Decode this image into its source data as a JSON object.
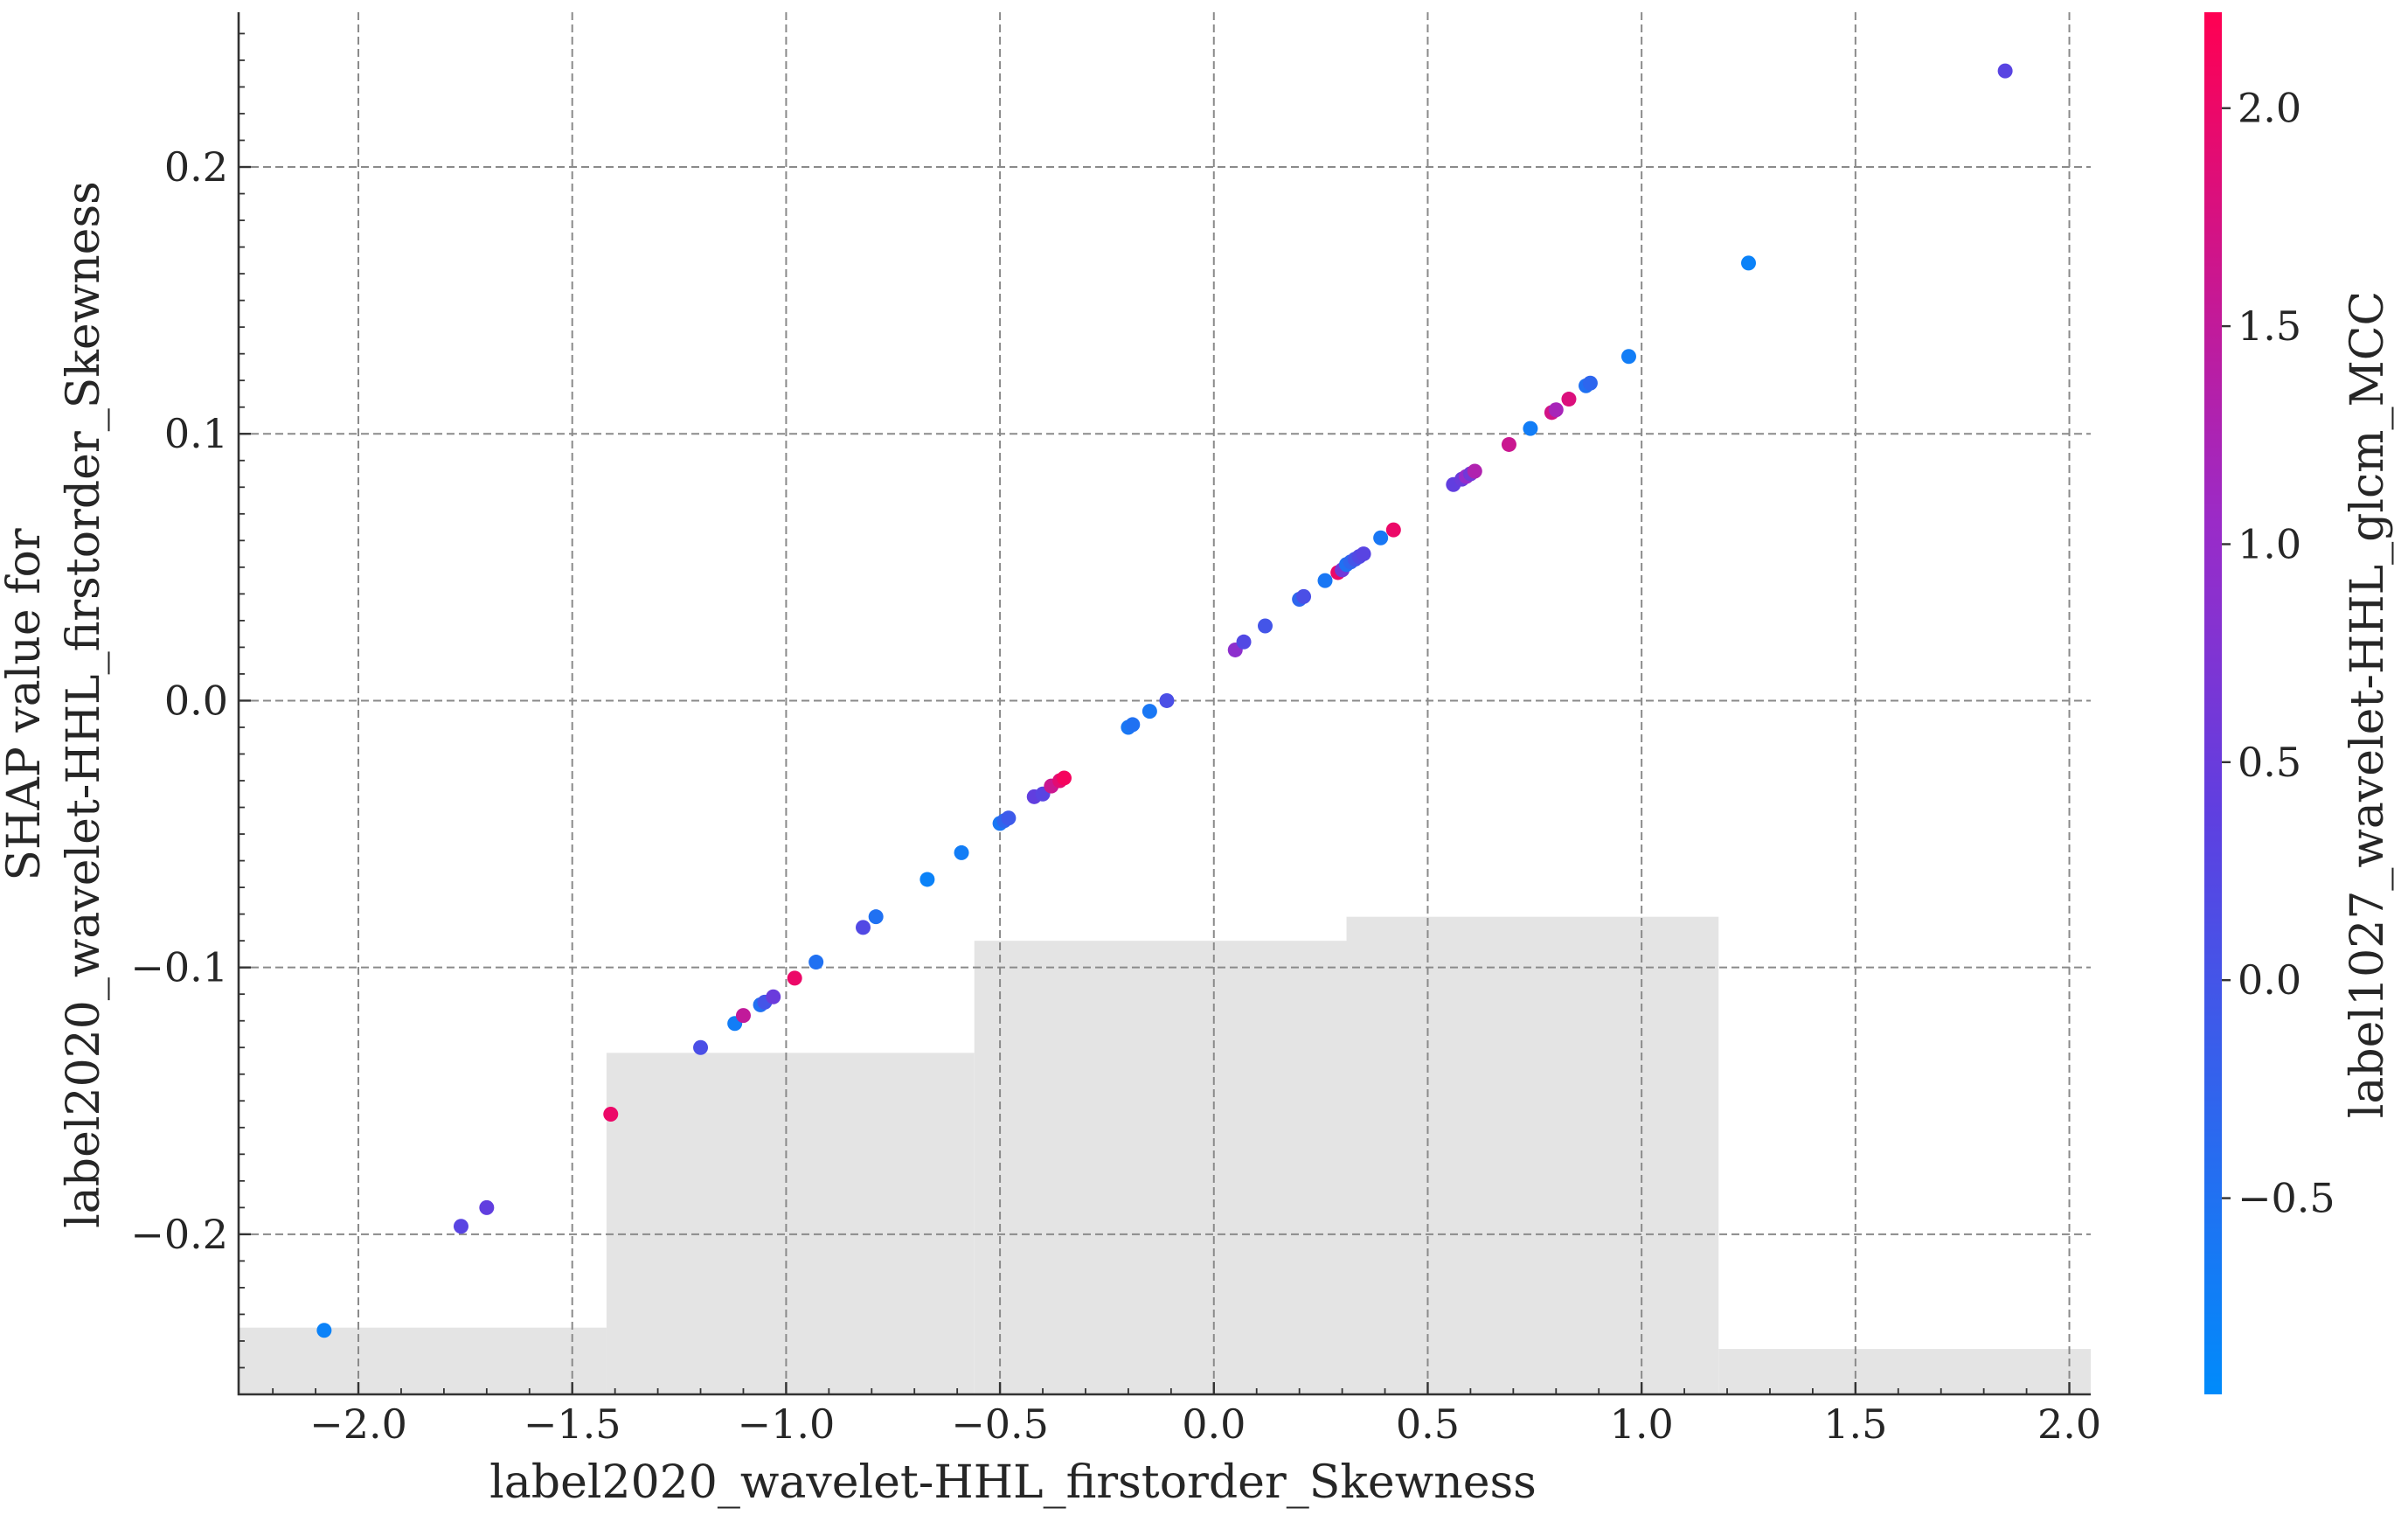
{
  "chart_data": {
    "type": "scatter",
    "title": "",
    "xlabel": "label2020_wavelet-HHL_firstorder_Skewness",
    "ylabel_lines": [
      "SHAP value for",
      "label2020_wavelet-HHL_firstorder_Skewness"
    ],
    "xlim": [
      -2.28,
      2.05
    ],
    "ylim": [
      -0.26,
      0.258
    ],
    "x_ticks": [
      -2.0,
      -1.5,
      -1.0,
      -0.5,
      0.0,
      0.5,
      1.0,
      1.5,
      2.0
    ],
    "x_tick_labels": [
      "−2.0",
      "−1.5",
      "−1.0",
      "−0.5",
      "0.0",
      "0.5",
      "1.0",
      "1.5",
      "2.0"
    ],
    "y_ticks": [
      -0.2,
      -0.1,
      0.0,
      0.1,
      0.2
    ],
    "y_tick_labels": [
      "−0.2",
      "−0.1",
      "0.0",
      "0.1",
      "0.2"
    ],
    "grid": true,
    "colorbar": {
      "label": "label1027_wavelet-HHL_glcm_MCC",
      "range": [
        -0.95,
        2.22
      ],
      "ticks": [
        -0.5,
        0.0,
        0.5,
        1.0,
        1.5,
        2.0
      ],
      "tick_labels": [
        "−0.5",
        "0.0",
        "0.5",
        "1.0",
        "1.5",
        "2.0"
      ],
      "colormap": [
        "#008bfb",
        "#5f3fe0",
        "#9a2bc8",
        "#ff0052"
      ]
    },
    "histogram_background": {
      "color": "#e4e4e4",
      "bins": [
        {
          "x0": -2.28,
          "x1": -1.42,
          "height": -0.235
        },
        {
          "x0": -1.42,
          "x1": -0.56,
          "height": -0.132
        },
        {
          "x0": -0.56,
          "x1": 0.31,
          "height": -0.09
        },
        {
          "x0": 0.31,
          "x1": 1.18,
          "height": -0.081
        },
        {
          "x0": 1.18,
          "x1": 2.05,
          "height": -0.243
        }
      ]
    },
    "points": [
      {
        "x": -2.08,
        "y": -0.236,
        "c": -0.8
      },
      {
        "x": -1.76,
        "y": -0.197,
        "c": 0.3
      },
      {
        "x": -1.7,
        "y": -0.19,
        "c": 0.4
      },
      {
        "x": -1.41,
        "y": -0.155,
        "c": 2.0
      },
      {
        "x": -1.2,
        "y": -0.13,
        "c": 0.1
      },
      {
        "x": -1.12,
        "y": -0.121,
        "c": -0.7
      },
      {
        "x": -1.1,
        "y": -0.118,
        "c": 1.5
      },
      {
        "x": -1.06,
        "y": -0.114,
        "c": -0.5
      },
      {
        "x": -1.05,
        "y": -0.113,
        "c": 0.0
      },
      {
        "x": -1.03,
        "y": -0.111,
        "c": 0.5
      },
      {
        "x": -0.98,
        "y": -0.104,
        "c": 2.0
      },
      {
        "x": -0.93,
        "y": -0.098,
        "c": -0.5
      },
      {
        "x": -0.82,
        "y": -0.085,
        "c": 0.2
      },
      {
        "x": -0.79,
        "y": -0.081,
        "c": -0.5
      },
      {
        "x": -0.67,
        "y": -0.067,
        "c": -0.8
      },
      {
        "x": -0.59,
        "y": -0.057,
        "c": -0.7
      },
      {
        "x": -0.5,
        "y": -0.046,
        "c": -0.6
      },
      {
        "x": -0.49,
        "y": -0.045,
        "c": -0.3
      },
      {
        "x": -0.48,
        "y": -0.044,
        "c": -0.1
      },
      {
        "x": -0.42,
        "y": -0.036,
        "c": 0.4
      },
      {
        "x": -0.4,
        "y": -0.035,
        "c": 0.3
      },
      {
        "x": -0.38,
        "y": -0.032,
        "c": 1.6
      },
      {
        "x": -0.36,
        "y": -0.03,
        "c": 1.9
      },
      {
        "x": -0.35,
        "y": -0.029,
        "c": 2.1
      },
      {
        "x": -0.2,
        "y": -0.01,
        "c": -0.6
      },
      {
        "x": -0.19,
        "y": -0.009,
        "c": -0.5
      },
      {
        "x": -0.15,
        "y": -0.004,
        "c": -0.6
      },
      {
        "x": -0.11,
        "y": 0.0,
        "c": 0.1
      },
      {
        "x": 0.05,
        "y": 0.019,
        "c": 0.9
      },
      {
        "x": 0.07,
        "y": 0.022,
        "c": 0.2
      },
      {
        "x": 0.12,
        "y": 0.028,
        "c": 0.0
      },
      {
        "x": 0.2,
        "y": 0.038,
        "c": -0.3
      },
      {
        "x": 0.21,
        "y": 0.039,
        "c": 0.1
      },
      {
        "x": 0.26,
        "y": 0.045,
        "c": -0.6
      },
      {
        "x": 0.29,
        "y": 0.048,
        "c": 2.0
      },
      {
        "x": 0.3,
        "y": 0.049,
        "c": 0.6
      },
      {
        "x": 0.31,
        "y": 0.051,
        "c": -0.5
      },
      {
        "x": 0.32,
        "y": 0.052,
        "c": -0.3
      },
      {
        "x": 0.33,
        "y": 0.053,
        "c": 0.0
      },
      {
        "x": 0.34,
        "y": 0.054,
        "c": 0.2
      },
      {
        "x": 0.35,
        "y": 0.055,
        "c": 0.3
      },
      {
        "x": 0.39,
        "y": 0.061,
        "c": -0.6
      },
      {
        "x": 0.42,
        "y": 0.064,
        "c": 2.0
      },
      {
        "x": 0.56,
        "y": 0.081,
        "c": 0.4
      },
      {
        "x": 0.58,
        "y": 0.083,
        "c": 0.5
      },
      {
        "x": 0.59,
        "y": 0.084,
        "c": 1.0
      },
      {
        "x": 0.6,
        "y": 0.085,
        "c": 0.6
      },
      {
        "x": 0.61,
        "y": 0.086,
        "c": 1.3
      },
      {
        "x": 0.69,
        "y": 0.096,
        "c": 1.6
      },
      {
        "x": 0.74,
        "y": 0.102,
        "c": -0.7
      },
      {
        "x": 0.79,
        "y": 0.108,
        "c": 1.7
      },
      {
        "x": 0.8,
        "y": 0.109,
        "c": 1.2
      },
      {
        "x": 0.83,
        "y": 0.113,
        "c": 1.8
      },
      {
        "x": 0.87,
        "y": 0.118,
        "c": -0.5
      },
      {
        "x": 0.88,
        "y": 0.119,
        "c": -0.3
      },
      {
        "x": 0.97,
        "y": 0.129,
        "c": -0.7
      },
      {
        "x": 1.25,
        "y": 0.164,
        "c": -0.8
      },
      {
        "x": 1.85,
        "y": 0.236,
        "c": 0.3
      }
    ]
  }
}
